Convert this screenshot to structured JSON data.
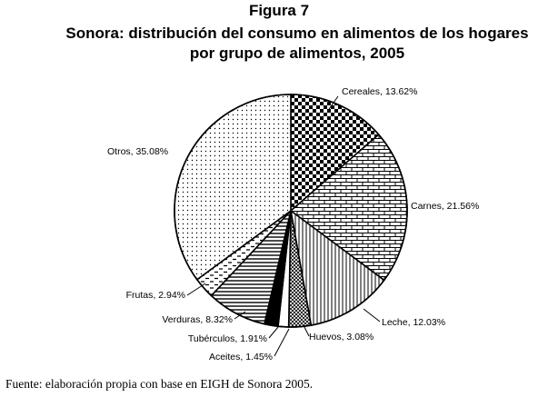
{
  "figure": {
    "label": "Figura 7",
    "title_line1": "Sonora: distribución del consumo en alimentos de los hogares",
    "title_line2": "por grupo de alimentos, 2005"
  },
  "source": "Fuente: elaboración propia con base en EIGH de Sonora 2005.",
  "chart_data": {
    "type": "pie",
    "title": "Sonora: distribución del consumo en alimentos de los hogares por grupo de alimentos, 2005",
    "slices": [
      {
        "category": "Cereales",
        "value": 13.62,
        "label": "Cereales, 13.62%",
        "pattern": "checker"
      },
      {
        "category": "Carnes",
        "value": 21.56,
        "label": "Carnes, 21.56%",
        "pattern": "brick"
      },
      {
        "category": "Leche",
        "value": 12.03,
        "label": "Leche, 12.03%",
        "pattern": "vlines"
      },
      {
        "category": "Huevos",
        "value": 3.08,
        "label": "Huevos, 3.08%",
        "pattern": "crosshatch"
      },
      {
        "category": "Aceites",
        "value": 1.45,
        "label": "Aceites, 1.45%",
        "pattern": "white"
      },
      {
        "category": "Tubérculos",
        "value": 1.91,
        "label": "Tubérculos, 1.91%",
        "pattern": "black"
      },
      {
        "category": "Verduras",
        "value": 8.32,
        "label": "Verduras, 8.32%",
        "pattern": "hlines"
      },
      {
        "category": "Frutas",
        "value": 2.94,
        "label": "Frutas, 2.94%",
        "pattern": "dashes"
      },
      {
        "category": "Otros",
        "value": 35.08,
        "label": "Otros, 35.08%",
        "pattern": "dots"
      }
    ],
    "start_angle": "12 o'clock",
    "direction": "clockwise",
    "legend": "none (labels beside slices)"
  }
}
